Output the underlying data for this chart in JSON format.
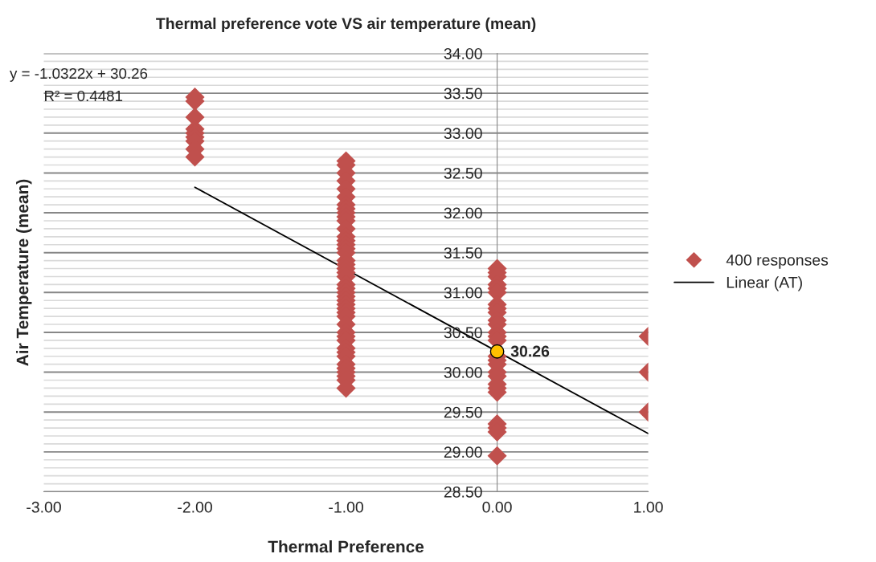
{
  "chart_data": {
    "type": "scatter",
    "title": "Thermal preference vote VS air temperature (mean)",
    "xlabel": "Thermal Preference",
    "ylabel": "Air Temperature (mean)",
    "xlim": [
      -3,
      1
    ],
    "xticks": [
      {
        "value": -3,
        "label": "-3.00"
      },
      {
        "value": -2,
        "label": "-2.00"
      },
      {
        "value": -1,
        "label": "-1.00"
      },
      {
        "value": 0,
        "label": "0.00"
      },
      {
        "value": 1,
        "label": "1.00"
      }
    ],
    "ylim": [
      28.5,
      34
    ],
    "yticks": [
      {
        "value": 28.5,
        "label": "28.50"
      },
      {
        "value": 28.6,
        "label": null
      },
      {
        "value": 28.7,
        "label": null
      },
      {
        "value": 28.8,
        "label": null
      },
      {
        "value": 28.9,
        "label": null
      },
      {
        "value": 29.0,
        "label": "29.00"
      },
      {
        "value": 29.1,
        "label": null
      },
      {
        "value": 29.2,
        "label": null
      },
      {
        "value": 29.3,
        "label": null
      },
      {
        "value": 29.4,
        "label": null
      },
      {
        "value": 29.5,
        "label": "29.50"
      },
      {
        "value": 29.6,
        "label": null
      },
      {
        "value": 29.7,
        "label": null
      },
      {
        "value": 29.8,
        "label": null
      },
      {
        "value": 29.9,
        "label": null
      },
      {
        "value": 30.0,
        "label": "30.00"
      },
      {
        "value": 30.1,
        "label": null
      },
      {
        "value": 30.2,
        "label": null
      },
      {
        "value": 30.3,
        "label": null
      },
      {
        "value": 30.4,
        "label": null
      },
      {
        "value": 30.5,
        "label": "30.50"
      },
      {
        "value": 30.6,
        "label": null
      },
      {
        "value": 30.7,
        "label": null
      },
      {
        "value": 30.8,
        "label": null
      },
      {
        "value": 30.9,
        "label": null
      },
      {
        "value": 31.0,
        "label": "31.00"
      },
      {
        "value": 31.1,
        "label": null
      },
      {
        "value": 31.2,
        "label": null
      },
      {
        "value": 31.3,
        "label": null
      },
      {
        "value": 31.4,
        "label": null
      },
      {
        "value": 31.5,
        "label": "31.50"
      },
      {
        "value": 31.6,
        "label": null
      },
      {
        "value": 31.7,
        "label": null
      },
      {
        "value": 31.8,
        "label": null
      },
      {
        "value": 31.9,
        "label": null
      },
      {
        "value": 32.0,
        "label": "32.00"
      },
      {
        "value": 32.1,
        "label": null
      },
      {
        "value": 32.2,
        "label": null
      },
      {
        "value": 32.3,
        "label": null
      },
      {
        "value": 32.4,
        "label": null
      },
      {
        "value": 32.5,
        "label": "32.50"
      },
      {
        "value": 32.6,
        "label": null
      },
      {
        "value": 32.7,
        "label": null
      },
      {
        "value": 32.8,
        "label": null
      },
      {
        "value": 32.9,
        "label": null
      },
      {
        "value": 33.0,
        "label": "33.00"
      },
      {
        "value": 33.1,
        "label": null
      },
      {
        "value": 33.2,
        "label": null
      },
      {
        "value": 33.3,
        "label": null
      },
      {
        "value": 33.4,
        "label": null
      },
      {
        "value": 33.5,
        "label": "33.50"
      },
      {
        "value": 33.6,
        "label": null
      },
      {
        "value": 33.7,
        "label": null
      },
      {
        "value": 33.8,
        "label": null
      },
      {
        "value": 33.9,
        "label": null
      },
      {
        "value": 34.0,
        "label": "34.00"
      }
    ],
    "grid": "y",
    "legend": "right",
    "annotations": [
      "y = -1.0322x + 30.26",
      "R² = 0.4481"
    ],
    "series": [
      {
        "name": "400 responses",
        "marker": "diamond",
        "color": "#c0504d",
        "x": [
          -2,
          -2,
          -2,
          -2,
          -2,
          -2,
          -2,
          -2,
          -2,
          -1,
          -1,
          -1,
          -1,
          -1,
          -1,
          -1,
          -1,
          -1,
          -1,
          -1,
          -1,
          -1,
          -1,
          -1,
          -1,
          -1,
          -1,
          -1,
          -1,
          -1,
          -1,
          -1,
          -1,
          -1,
          -1,
          -1,
          -1,
          -1,
          -1,
          -1,
          -1,
          -1,
          -1,
          -1,
          -1,
          -1,
          -1,
          -1,
          -1,
          -1,
          -1,
          -1,
          -1,
          0,
          0,
          0,
          0,
          0,
          0,
          0,
          0,
          0,
          0,
          0,
          0,
          0,
          0,
          0,
          0,
          0,
          0,
          0,
          0,
          0,
          0,
          0,
          0,
          0,
          0,
          1,
          1,
          1
        ],
        "values": [
          33.45,
          33.4,
          33.2,
          33.05,
          33.0,
          32.95,
          32.9,
          32.8,
          32.7,
          32.65,
          32.6,
          32.5,
          32.4,
          32.3,
          32.2,
          32.1,
          32.05,
          32.0,
          31.95,
          31.9,
          31.8,
          31.7,
          31.65,
          31.6,
          31.55,
          31.5,
          31.4,
          31.35,
          31.3,
          31.25,
          31.2,
          31.1,
          31.05,
          31.0,
          30.95,
          30.9,
          30.85,
          30.8,
          30.75,
          30.7,
          30.6,
          30.5,
          30.45,
          30.4,
          30.3,
          30.25,
          30.2,
          30.1,
          30.05,
          30.0,
          29.95,
          29.9,
          29.8,
          31.3,
          31.25,
          31.2,
          31.1,
          31.05,
          31.0,
          30.85,
          30.8,
          30.75,
          30.65,
          30.6,
          30.5,
          30.45,
          30.4,
          30.2,
          30.15,
          30.1,
          30.0,
          29.95,
          29.85,
          29.8,
          29.75,
          29.35,
          29.3,
          29.25,
          28.95,
          30.45,
          30.0,
          29.5
        ]
      },
      {
        "name": "Linear (AT)",
        "type": "line",
        "color": "#000000",
        "line_style": "solid",
        "x": [
          -2,
          1
        ],
        "values": [
          32.32,
          29.23
        ]
      },
      {
        "marker": "circle",
        "color": "#ffc000",
        "x": [
          0
        ],
        "values": [
          30.26
        ],
        "value_labels": [
          "30.26"
        ]
      }
    ]
  }
}
